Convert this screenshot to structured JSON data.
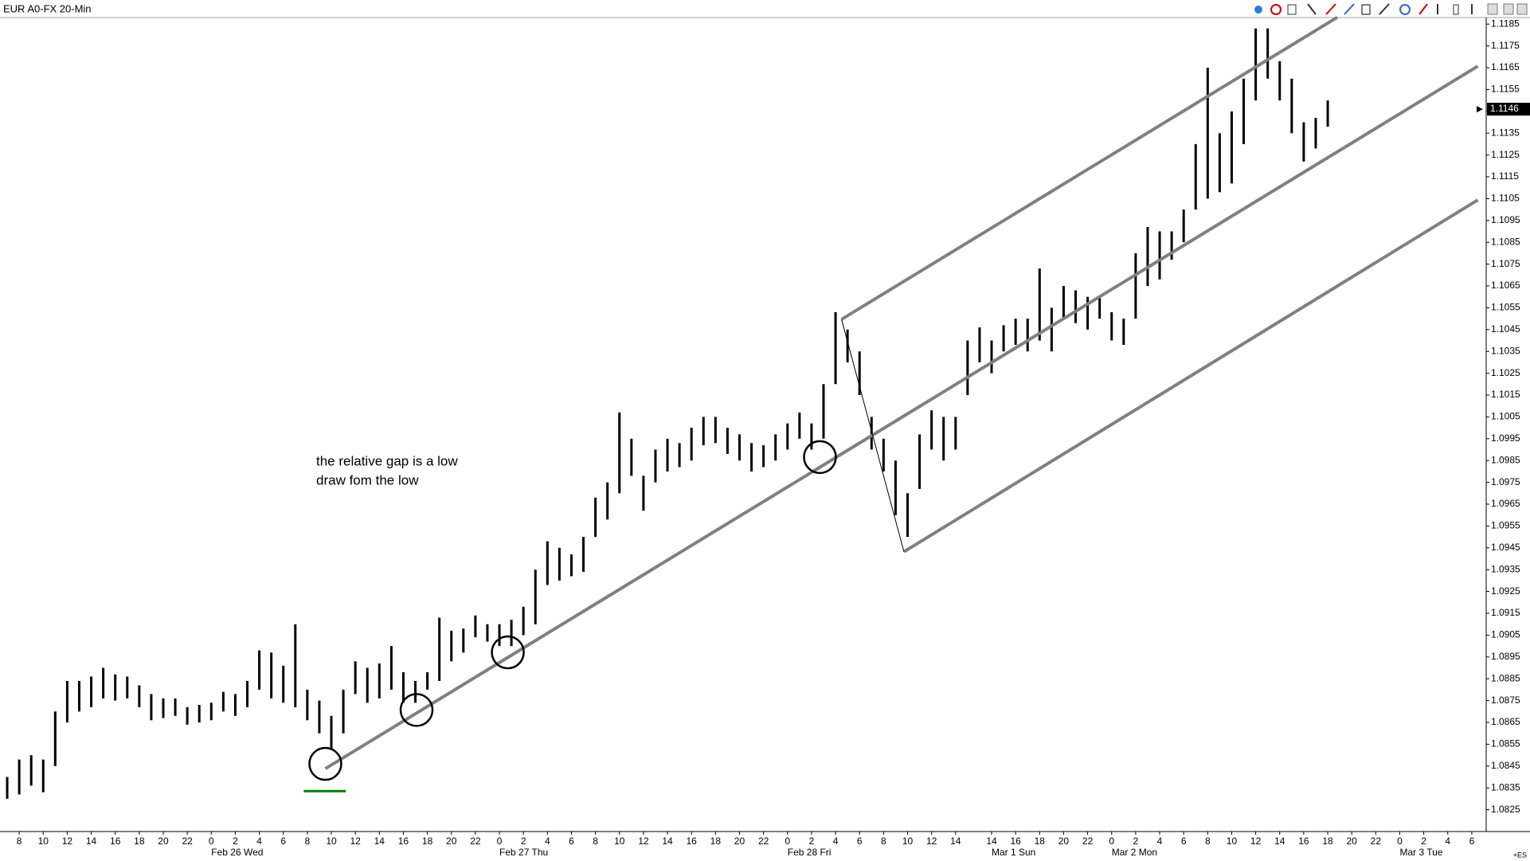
{
  "chart_data": {
    "type": "ohlc",
    "title": "EUR A0-FX 20-Min",
    "annotation": [
      "the relative gap is a low",
      "draw fom the low"
    ],
    "corner_label": "+ES",
    "color": "#000000",
    "x": [
      -1,
      0,
      1,
      2,
      3,
      4,
      5,
      6,
      7,
      8,
      9,
      10,
      11,
      12,
      13,
      14,
      15,
      16,
      17,
      18,
      19,
      20,
      21,
      22,
      23,
      24,
      25,
      26,
      27,
      28,
      29,
      30,
      31,
      32,
      33,
      34,
      35,
      36,
      37,
      38,
      39,
      40,
      41,
      42,
      43,
      44,
      45,
      46,
      47,
      48,
      49,
      50,
      51,
      52,
      53,
      54,
      55,
      56,
      57,
      58,
      59,
      60,
      61,
      62,
      63,
      64,
      65,
      66,
      67,
      68,
      69,
      70,
      71,
      72,
      73,
      74,
      75,
      76,
      77,
      78,
      79,
      80,
      81,
      82,
      83,
      84,
      85,
      86,
      87,
      88,
      89,
      90,
      91,
      92,
      93,
      94,
      95,
      96,
      97,
      98,
      99,
      100,
      101,
      102,
      103,
      104,
      105,
      106,
      107,
      108,
      109
    ],
    "high": [
      1.084,
      1.0848,
      1.085,
      1.0848,
      1.087,
      1.0884,
      1.0884,
      1.0886,
      1.089,
      1.0887,
      1.0886,
      1.0882,
      1.0878,
      1.0876,
      1.0876,
      1.0872,
      1.0873,
      1.0874,
      1.0879,
      1.0878,
      1.0884,
      1.0898,
      1.0897,
      1.0891,
      1.091,
      1.088,
      1.0875,
      1.0868,
      1.088,
      1.0893,
      1.089,
      1.0892,
      1.09,
      1.0888,
      1.0884,
      1.0888,
      1.0913,
      1.0907,
      1.0908,
      1.0914,
      1.091,
      1.091,
      1.0912,
      1.0918,
      1.0935,
      1.0948,
      1.0945,
      1.0942,
      1.095,
      1.0968,
      1.0975,
      1.1007,
      1.0995,
      1.0978,
      1.099,
      1.0995,
      1.0993,
      1.1,
      1.1005,
      1.1005,
      1.1,
      1.0997,
      1.0993,
      1.0992,
      1.0997,
      1.1002,
      1.1007,
      1.1002,
      1.102,
      1.1053,
      1.1045,
      1.1035,
      1.1005,
      1.0995,
      1.0985,
      1.097,
      1.0997,
      1.1008,
      1.1005,
      1.1005,
      1.104,
      1.1046,
      1.104,
      1.1047,
      1.105,
      1.105,
      1.1073,
      1.1055,
      1.1065,
      1.1063,
      1.106,
      1.106,
      1.1053,
      1.105,
      1.108,
      1.1092,
      1.109,
      1.109,
      1.11,
      1.113,
      1.1165,
      1.1135,
      1.1145,
      1.116,
      1.1183,
      1.1183,
      1.1168,
      1.116,
      1.114,
      1.1142,
      1.115
    ],
    "low": [
      1.083,
      1.0832,
      1.0836,
      1.0833,
      1.0845,
      1.0865,
      1.087,
      1.0872,
      1.0876,
      1.0875,
      1.0876,
      1.0872,
      1.0866,
      1.0867,
      1.0868,
      1.0864,
      1.0865,
      1.0866,
      1.087,
      1.0868,
      1.0872,
      1.088,
      1.0876,
      1.0874,
      1.0872,
      1.0866,
      1.086,
      1.0853,
      1.086,
      1.0878,
      1.0874,
      1.0876,
      1.088,
      1.0874,
      1.0874,
      1.088,
      1.0884,
      1.0893,
      1.0897,
      1.0904,
      1.0902,
      1.09,
      1.09,
      1.0905,
      1.091,
      1.0928,
      1.093,
      1.0932,
      1.0934,
      1.095,
      1.0958,
      1.097,
      1.0978,
      1.0962,
      1.0975,
      1.098,
      1.0982,
      1.0985,
      1.0992,
      1.0993,
      1.0988,
      1.0985,
      1.098,
      1.0982,
      1.0985,
      1.099,
      1.0995,
      1.099,
      1.0995,
      1.102,
      1.103,
      1.1015,
      1.099,
      1.098,
      1.096,
      1.095,
      1.0972,
      1.099,
      1.0985,
      1.099,
      1.1015,
      1.103,
      1.1025,
      1.1035,
      1.1038,
      1.1035,
      1.104,
      1.1035,
      1.105,
      1.1048,
      1.1045,
      1.105,
      1.104,
      1.1038,
      1.105,
      1.1065,
      1.1068,
      1.1077,
      1.1085,
      1.11,
      1.1105,
      1.1108,
      1.1112,
      1.113,
      1.115,
      1.116,
      1.115,
      1.1135,
      1.1122,
      1.1128,
      1.1138
    ],
    "last_price": 1.1146,
    "xlim": [
      -1.6,
      122.2
    ],
    "ylim": [
      1.0815,
      1.1188
    ],
    "yticks": [
      1.0825,
      1.0835,
      1.0845,
      1.0855,
      1.0865,
      1.0875,
      1.0885,
      1.0895,
      1.0905,
      1.0915,
      1.0925,
      1.0935,
      1.0945,
      1.0955,
      1.0965,
      1.0975,
      1.0985,
      1.0995,
      1.1005,
      1.1015,
      1.1025,
      1.1035,
      1.1045,
      1.1055,
      1.1065,
      1.1075,
      1.1085,
      1.1095,
      1.1105,
      1.1115,
      1.1125,
      1.1135,
      1.1145,
      1.1155,
      1.1165,
      1.1175,
      1.1185
    ],
    "xticks": [
      {
        "value": 0,
        "label": "8"
      },
      {
        "value": 2,
        "label": "10"
      },
      {
        "value": 4,
        "label": "12"
      },
      {
        "value": 6,
        "label": "14"
      },
      {
        "value": 8,
        "label": "16"
      },
      {
        "value": 10,
        "label": "18"
      },
      {
        "value": 12,
        "label": "20"
      },
      {
        "value": 14,
        "label": "22"
      },
      {
        "value": 16,
        "label": "0"
      },
      {
        "value": 18,
        "label": "2"
      },
      {
        "value": 20,
        "label": "4"
      },
      {
        "value": 22,
        "label": "6"
      },
      {
        "value": 24,
        "label": "8"
      },
      {
        "value": 26,
        "label": "10"
      },
      {
        "value": 28,
        "label": "12"
      },
      {
        "value": 30,
        "label": "14"
      },
      {
        "value": 32,
        "label": "16"
      },
      {
        "value": 34,
        "label": "18"
      },
      {
        "value": 36,
        "label": "20"
      },
      {
        "value": 38,
        "label": "22"
      },
      {
        "value": 40,
        "label": "0"
      },
      {
        "value": 42,
        "label": "2"
      },
      {
        "value": 44,
        "label": "4"
      },
      {
        "value": 46,
        "label": "6"
      },
      {
        "value": 48,
        "label": "8"
      },
      {
        "value": 50,
        "label": "10"
      },
      {
        "value": 52,
        "label": "12"
      },
      {
        "value": 54,
        "label": "14"
      },
      {
        "value": 56,
        "label": "16"
      },
      {
        "value": 58,
        "label": "18"
      },
      {
        "value": 60,
        "label": "20"
      },
      {
        "value": 62,
        "label": "22"
      },
      {
        "value": 64,
        "label": "0"
      },
      {
        "value": 66,
        "label": "2"
      },
      {
        "value": 68,
        "label": "4"
      },
      {
        "value": 70,
        "label": "6"
      },
      {
        "value": 72,
        "label": "8"
      },
      {
        "value": 74,
        "label": "10"
      },
      {
        "value": 76,
        "label": "12"
      },
      {
        "value": 78,
        "label": "14"
      },
      {
        "value": 81,
        "label": "14"
      },
      {
        "value": 83,
        "label": "16"
      },
      {
        "value": 85,
        "label": "18"
      },
      {
        "value": 87,
        "label": "20"
      },
      {
        "value": 89,
        "label": "22"
      },
      {
        "value": 91,
        "label": "0"
      },
      {
        "value": 93,
        "label": "2"
      },
      {
        "value": 95,
        "label": "4"
      },
      {
        "value": 97,
        "label": "6"
      },
      {
        "value": 99,
        "label": "8"
      },
      {
        "value": 101,
        "label": "10"
      },
      {
        "value": 103,
        "label": "12"
      },
      {
        "value": 105,
        "label": "14"
      },
      {
        "value": 107,
        "label": "16"
      },
      {
        "value": 109,
        "label": "18"
      },
      {
        "value": 111,
        "label": "20"
      },
      {
        "value": 113,
        "label": "22"
      },
      {
        "value": 115,
        "label": "0"
      },
      {
        "value": 117,
        "label": "2"
      },
      {
        "value": 119,
        "label": "4"
      },
      {
        "value": 121,
        "label": "6"
      }
    ],
    "day_labels": [
      {
        "value": 16,
        "label": "Feb 26 Wed"
      },
      {
        "value": 40,
        "label": "Feb 27 Thu"
      },
      {
        "value": 64,
        "label": "Feb 28 Fri"
      },
      {
        "value": 81,
        "label": "Mar 1 Sun"
      },
      {
        "value": 91,
        "label": "Mar 2 Mon"
      },
      {
        "value": 115,
        "label": "Mar 3 Tue"
      }
    ],
    "lines": [
      {
        "x": [
          25.5,
          121.5
        ],
        "y": [
          1.08438,
          1.11657
        ],
        "color": "#808080",
        "width": 4
      },
      {
        "x": [
          68.5,
          109.8
        ],
        "y": [
          1.10497,
          1.11881
        ],
        "color": "#808080",
        "width": 4
      },
      {
        "x": [
          73.7,
          121.5
        ],
        "y": [
          1.09432,
          1.11044
        ],
        "color": "#808080",
        "width": 4
      },
      {
        "x": [
          68.5,
          73.7
        ],
        "y": [
          1.10497,
          1.09432
        ],
        "color": "#000000",
        "width": 1
      },
      {
        "x": [
          23.7,
          27.2
        ],
        "y": [
          1.08335,
          1.08335
        ],
        "color": "#008000",
        "width": 3
      }
    ],
    "circles": {
      "x": [
        25.5,
        33.1,
        40.7,
        66.7
      ],
      "y": [
        1.0846,
        1.08707,
        1.08971,
        1.09866
      ]
    }
  }
}
